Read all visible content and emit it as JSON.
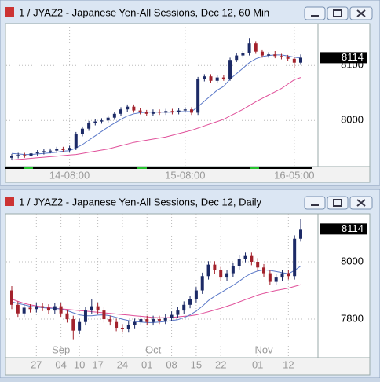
{
  "chart_data": [
    {
      "type": "candlestick",
      "title": "1 / JYAZ2 - Japanese Yen-All Sessions, Dec 12, 60 Min",
      "up_color": "#1c2a66",
      "down_color": "#a3222c",
      "ma_colors": [
        "#5a78c8",
        "#e0509a"
      ],
      "ylim": [
        7916,
        8176
      ],
      "yticks": [
        8000,
        8100
      ],
      "last": 8114,
      "categories": [
        null,
        null,
        null,
        null,
        null,
        null,
        null,
        null,
        null,
        "14-08:00",
        null,
        null,
        null,
        null,
        null,
        null,
        null,
        null,
        null,
        null,
        null,
        null,
        null,
        null,
        null,
        null,
        null,
        "15-08:00",
        null,
        null,
        null,
        null,
        null,
        null,
        null,
        null,
        null,
        null,
        null,
        null,
        null,
        null,
        null,
        null,
        "16-05:00",
        null
      ],
      "open": [
        7932,
        7935,
        7937,
        7936,
        7940,
        7942,
        7944,
        7945,
        7948,
        7946,
        7950,
        7975,
        7985,
        7995,
        7998,
        8000,
        8005,
        8012,
        8020,
        8025,
        8018,
        8015,
        8012,
        8016,
        8014,
        8017,
        8015,
        8018,
        8020,
        8014,
        8075,
        8080,
        8072,
        8078,
        8076,
        8110,
        8118,
        8122,
        8140,
        8125,
        8118,
        8120,
        8117,
        8115,
        8112,
        8105
      ],
      "high": [
        7939,
        7941,
        7941,
        7944,
        7946,
        7948,
        7949,
        7952,
        7952,
        7954,
        7979,
        7989,
        7999,
        8002,
        8004,
        8009,
        8016,
        8024,
        8029,
        8029,
        8022,
        8019,
        8020,
        8020,
        8021,
        8021,
        8022,
        8024,
        8024,
        8079,
        8084,
        8084,
        8082,
        8082,
        8114,
        8122,
        8126,
        8150,
        8144,
        8129,
        8124,
        8126,
        8121,
        8119,
        8116,
        8120
      ],
      "low": [
        7928,
        7931,
        7932,
        7932,
        7936,
        7938,
        7940,
        7941,
        7942,
        7942,
        7946,
        7971,
        7981,
        7991,
        7994,
        7996,
        8001,
        8008,
        8016,
        8014,
        8011,
        8008,
        8008,
        8010,
        8010,
        8011,
        8011,
        8014,
        8010,
        8010,
        8071,
        8068,
        8068,
        8072,
        8072,
        8106,
        8114,
        8118,
        8121,
        8114,
        8114,
        8113,
        8111,
        8108,
        8096,
        8101
      ],
      "close": [
        7935,
        7937,
        7936,
        7940,
        7942,
        7944,
        7945,
        7948,
        7946,
        7950,
        7975,
        7985,
        7995,
        7998,
        8000,
        8005,
        8012,
        8020,
        8025,
        8018,
        8015,
        8012,
        8016,
        8014,
        8017,
        8015,
        8018,
        8020,
        8014,
        8075,
        8080,
        8072,
        8078,
        8076,
        8110,
        8118,
        8122,
        8140,
        8125,
        8118,
        8120,
        8117,
        8115,
        8112,
        8105,
        8114
      ],
      "ma_fast": [
        7940,
        7939,
        7938,
        7938,
        7939,
        7940,
        7941,
        7942,
        7944,
        7945,
        7950,
        7956,
        7964,
        7972,
        7980,
        7988,
        7995,
        8002,
        8008,
        8012,
        8014,
        8015,
        8015,
        8015,
        8015,
        8015,
        8016,
        8016,
        8016,
        8025,
        8035,
        8045,
        8055,
        8062,
        8075,
        8085,
        8095,
        8105,
        8112,
        8116,
        8118,
        8119,
        8119,
        8117,
        8115,
        8113
      ],
      "ma_slow": [
        7928,
        7929,
        7930,
        7931,
        7932,
        7933,
        7934,
        7935,
        7936,
        7937,
        7938,
        7940,
        7942,
        7944,
        7946,
        7948,
        7951,
        7954,
        7957,
        7960,
        7962,
        7964,
        7966,
        7968,
        7970,
        7973,
        7976,
        7979,
        7982,
        7986,
        7990,
        7994,
        7998,
        8002,
        8008,
        8014,
        8020,
        8027,
        8034,
        8040,
        8046,
        8052,
        8058,
        8066,
        8074,
        8078
      ]
    },
    {
      "type": "candlestick",
      "title": "1 / JYAZ2 - Japanese Yen-All Sessions, Dec 12, Daily",
      "up_color": "#1c2a66",
      "down_color": "#a3222c",
      "ma_colors": [
        "#5a78c8",
        "#e0509a"
      ],
      "ylim": [
        7666,
        8167
      ],
      "yticks": [
        7800,
        8000
      ],
      "last": 8114,
      "months": [
        null,
        null,
        null,
        null,
        null,
        null,
        null,
        null,
        "Sep",
        null,
        null,
        null,
        null,
        null,
        null,
        null,
        null,
        null,
        null,
        null,
        null,
        null,
        null,
        "Oct",
        null,
        null,
        null,
        null,
        null,
        null,
        null,
        null,
        null,
        null,
        null,
        null,
        null,
        null,
        null,
        null,
        null,
        "Nov",
        null,
        null,
        null,
        null,
        null,
        null
      ],
      "categories": [
        null,
        null,
        null,
        null,
        "27",
        null,
        null,
        null,
        "04",
        null,
        null,
        "10",
        null,
        null,
        "17",
        null,
        null,
        null,
        "24",
        null,
        null,
        null,
        "01",
        null,
        null,
        null,
        "08",
        null,
        null,
        null,
        "15",
        null,
        null,
        null,
        "22",
        null,
        null,
        null,
        null,
        null,
        "01",
        null,
        null,
        null,
        null,
        "12",
        null,
        null
      ],
      "open": [
        7900,
        7850,
        7820,
        7840,
        7835,
        7845,
        7840,
        7830,
        7845,
        7820,
        7800,
        7760,
        7790,
        7830,
        7845,
        7830,
        7800,
        7790,
        7770,
        7765,
        7780,
        7790,
        7800,
        7790,
        7800,
        7795,
        7805,
        7815,
        7830,
        7850,
        7870,
        7900,
        7950,
        7990,
        7970,
        7945,
        7960,
        7985,
        8010,
        8020,
        8000,
        7980,
        7960,
        7930,
        7945,
        7960,
        7950,
        8080
      ],
      "high": [
        7915,
        7862,
        7852,
        7852,
        7857,
        7857,
        7852,
        7857,
        7857,
        7832,
        7812,
        7802,
        7842,
        7870,
        7857,
        7842,
        7812,
        7802,
        7782,
        7792,
        7802,
        7812,
        7812,
        7812,
        7812,
        7817,
        7827,
        7842,
        7862,
        7882,
        7912,
        7962,
        8002,
        8002,
        7982,
        7972,
        7997,
        8022,
        8032,
        8032,
        8012,
        7992,
        7972,
        7957,
        7972,
        7972,
        8092,
        8150
      ],
      "low": [
        7835,
        7808,
        7808,
        7823,
        7823,
        7828,
        7818,
        7818,
        7808,
        7788,
        7730,
        7748,
        7778,
        7818,
        7818,
        7788,
        7778,
        7758,
        7753,
        7753,
        7768,
        7778,
        7778,
        7778,
        7783,
        7783,
        7793,
        7803,
        7818,
        7838,
        7858,
        7888,
        7938,
        7958,
        7933,
        7933,
        7948,
        7973,
        7998,
        7988,
        7968,
        7948,
        7918,
        7918,
        7933,
        7938,
        7938,
        8070
      ],
      "close": [
        7850,
        7820,
        7840,
        7835,
        7845,
        7840,
        7830,
        7845,
        7820,
        7800,
        7760,
        7790,
        7830,
        7845,
        7830,
        7800,
        7790,
        7770,
        7765,
        7780,
        7790,
        7800,
        7790,
        7800,
        7795,
        7805,
        7815,
        7830,
        7850,
        7870,
        7900,
        7950,
        7990,
        7970,
        7945,
        7960,
        7985,
        8010,
        8020,
        8000,
        7980,
        7960,
        7930,
        7945,
        7960,
        7950,
        8080,
        8114
      ],
      "ma_fast": [
        7860,
        7855,
        7850,
        7845,
        7842,
        7840,
        7838,
        7838,
        7835,
        7830,
        7822,
        7815,
        7812,
        7812,
        7814,
        7815,
        7812,
        7806,
        7800,
        7795,
        7792,
        7790,
        7788,
        7788,
        7790,
        7792,
        7795,
        7798,
        7805,
        7815,
        7828,
        7845,
        7865,
        7880,
        7892,
        7905,
        7918,
        7932,
        7948,
        7960,
        7968,
        7972,
        7970,
        7966,
        7962,
        7958,
        7970,
        7985
      ],
      "ma_slow": [
        7870,
        7862,
        7855,
        7850,
        7846,
        7843,
        7840,
        7838,
        7836,
        7834,
        7832,
        7830,
        7828,
        7826,
        7824,
        7822,
        7820,
        7818,
        7816,
        7814,
        7812,
        7810,
        7808,
        7806,
        7805,
        7805,
        7806,
        7808,
        7810,
        7812,
        7815,
        7820,
        7826,
        7832,
        7838,
        7845,
        7852,
        7860,
        7868,
        7876,
        7884,
        7890,
        7895,
        7900,
        7904,
        7908,
        7914,
        7920
      ]
    }
  ]
}
